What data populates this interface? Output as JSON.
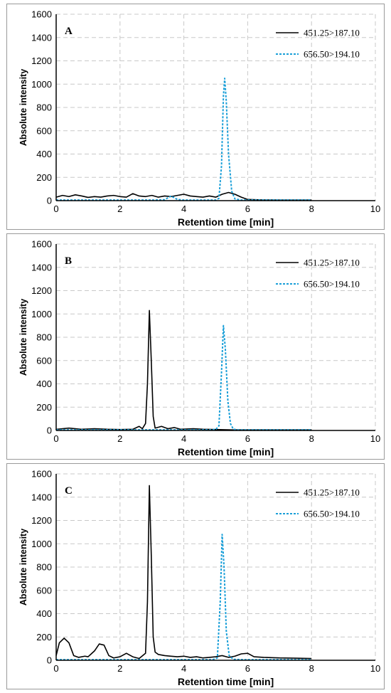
{
  "chart_data": [
    {
      "type": "line",
      "panel_label": "A",
      "xlabel": "Retention time [min]",
      "ylabel": "Absolute intensity",
      "xlim": [
        0,
        10
      ],
      "ylim": [
        0,
        1600
      ],
      "xticks": [
        0,
        2,
        4,
        6,
        8,
        10
      ],
      "yticks": [
        0,
        200,
        400,
        600,
        800,
        1000,
        1200,
        1400,
        1600
      ],
      "grid": true,
      "legend": "top-right",
      "series": [
        {
          "name": "451.25>187.10",
          "color": "#000000",
          "style": "solid",
          "points": [
            [
              0,
              30
            ],
            [
              0.2,
              45
            ],
            [
              0.4,
              35
            ],
            [
              0.6,
              50
            ],
            [
              0.8,
              40
            ],
            [
              1.0,
              28
            ],
            [
              1.2,
              35
            ],
            [
              1.4,
              30
            ],
            [
              1.6,
              40
            ],
            [
              1.8,
              45
            ],
            [
              2.0,
              35
            ],
            [
              2.2,
              30
            ],
            [
              2.4,
              60
            ],
            [
              2.6,
              40
            ],
            [
              2.8,
              35
            ],
            [
              3.0,
              45
            ],
            [
              3.2,
              30
            ],
            [
              3.4,
              40
            ],
            [
              3.6,
              35
            ],
            [
              3.8,
              45
            ],
            [
              4.0,
              55
            ],
            [
              4.2,
              40
            ],
            [
              4.4,
              35
            ],
            [
              4.6,
              30
            ],
            [
              4.8,
              40
            ],
            [
              5.0,
              30
            ],
            [
              5.2,
              55
            ],
            [
              5.4,
              70
            ],
            [
              5.6,
              55
            ],
            [
              5.8,
              30
            ],
            [
              6.0,
              10
            ],
            [
              6.5,
              6
            ],
            [
              7.0,
              5
            ],
            [
              7.5,
              5
            ],
            [
              8.0,
              5
            ]
          ]
        },
        {
          "name": "656.50>194.10",
          "color": "#1a9fd8",
          "style": "dashed",
          "points": [
            [
              0,
              5
            ],
            [
              1,
              5
            ],
            [
              2,
              5
            ],
            [
              3.0,
              5
            ],
            [
              3.4,
              8
            ],
            [
              3.6,
              40
            ],
            [
              3.8,
              10
            ],
            [
              4.0,
              5
            ],
            [
              4.6,
              5
            ],
            [
              5.0,
              5
            ],
            [
              5.1,
              20
            ],
            [
              5.18,
              300
            ],
            [
              5.24,
              900
            ],
            [
              5.28,
              1050
            ],
            [
              5.33,
              850
            ],
            [
              5.4,
              400
            ],
            [
              5.5,
              80
            ],
            [
              5.6,
              15
            ],
            [
              5.8,
              5
            ],
            [
              6.5,
              5
            ],
            [
              7.0,
              5
            ],
            [
              8.0,
              5
            ]
          ]
        }
      ]
    },
    {
      "type": "line",
      "panel_label": "B",
      "xlabel": "Retention time [min]",
      "ylabel": "Absolute intensity",
      "xlim": [
        0,
        10
      ],
      "ylim": [
        0,
        1600
      ],
      "xticks": [
        0,
        2,
        4,
        6,
        8,
        10
      ],
      "yticks": [
        0,
        200,
        400,
        600,
        800,
        1000,
        1200,
        1400,
        1600
      ],
      "grid": true,
      "legend": "top-right",
      "series": [
        {
          "name": "451.25>187.10",
          "color": "#000000",
          "style": "solid",
          "points": [
            [
              0,
              10
            ],
            [
              0.4,
              20
            ],
            [
              0.8,
              10
            ],
            [
              1.2,
              15
            ],
            [
              1.6,
              10
            ],
            [
              2.0,
              8
            ],
            [
              2.4,
              10
            ],
            [
              2.6,
              35
            ],
            [
              2.7,
              15
            ],
            [
              2.8,
              60
            ],
            [
              2.86,
              400
            ],
            [
              2.92,
              1030
            ],
            [
              2.98,
              600
            ],
            [
              3.04,
              120
            ],
            [
              3.1,
              20
            ],
            [
              3.3,
              35
            ],
            [
              3.5,
              15
            ],
            [
              3.7,
              25
            ],
            [
              3.9,
              10
            ],
            [
              4.3,
              15
            ],
            [
              4.6,
              10
            ],
            [
              5.0,
              8
            ],
            [
              5.5,
              5
            ],
            [
              6.0,
              5
            ],
            [
              7.0,
              5
            ],
            [
              8.0,
              5
            ]
          ]
        },
        {
          "name": "656.50>194.10",
          "color": "#1a9fd8",
          "style": "dashed",
          "points": [
            [
              0,
              5
            ],
            [
              1,
              5
            ],
            [
              2,
              5
            ],
            [
              3,
              5
            ],
            [
              3.6,
              5
            ],
            [
              4.0,
              5
            ],
            [
              4.8,
              5
            ],
            [
              5.0,
              8
            ],
            [
              5.1,
              40
            ],
            [
              5.18,
              500
            ],
            [
              5.24,
              900
            ],
            [
              5.3,
              700
            ],
            [
              5.38,
              250
            ],
            [
              5.46,
              60
            ],
            [
              5.55,
              10
            ],
            [
              5.7,
              5
            ],
            [
              6.5,
              5
            ],
            [
              8.0,
              5
            ]
          ]
        }
      ]
    },
    {
      "type": "line",
      "panel_label": "C",
      "xlabel": "Retention time [min]",
      "ylabel": "Absolute intensity",
      "xlim": [
        0,
        10
      ],
      "ylim": [
        0,
        1600
      ],
      "xticks": [
        0,
        2,
        4,
        6,
        8,
        10
      ],
      "yticks": [
        0,
        200,
        400,
        600,
        800,
        1000,
        1200,
        1400,
        1600
      ],
      "grid": true,
      "legend": "top-right",
      "series": [
        {
          "name": "451.25>187.10",
          "color": "#000000",
          "style": "solid",
          "points": [
            [
              0,
              40
            ],
            [
              0.1,
              150
            ],
            [
              0.25,
              190
            ],
            [
              0.4,
              150
            ],
            [
              0.55,
              40
            ],
            [
              0.7,
              25
            ],
            [
              0.9,
              35
            ],
            [
              1.0,
              30
            ],
            [
              1.2,
              80
            ],
            [
              1.35,
              140
            ],
            [
              1.5,
              130
            ],
            [
              1.65,
              40
            ],
            [
              1.8,
              20
            ],
            [
              2.0,
              30
            ],
            [
              2.2,
              60
            ],
            [
              2.4,
              30
            ],
            [
              2.6,
              15
            ],
            [
              2.8,
              60
            ],
            [
              2.86,
              500
            ],
            [
              2.92,
              1500
            ],
            [
              2.98,
              900
            ],
            [
              3.04,
              200
            ],
            [
              3.1,
              70
            ],
            [
              3.2,
              50
            ],
            [
              3.4,
              40
            ],
            [
              3.6,
              35
            ],
            [
              3.8,
              30
            ],
            [
              4.0,
              35
            ],
            [
              4.2,
              25
            ],
            [
              4.4,
              30
            ],
            [
              4.6,
              20
            ],
            [
              4.8,
              25
            ],
            [
              5.0,
              30
            ],
            [
              5.2,
              40
            ],
            [
              5.4,
              25
            ],
            [
              5.6,
              35
            ],
            [
              5.8,
              55
            ],
            [
              6.0,
              60
            ],
            [
              6.2,
              30
            ],
            [
              6.5,
              25
            ],
            [
              7.0,
              20
            ],
            [
              7.5,
              18
            ],
            [
              8.0,
              15
            ]
          ]
        },
        {
          "name": "656.50>194.10",
          "color": "#1a9fd8",
          "style": "dashed",
          "points": [
            [
              0,
              5
            ],
            [
              1,
              5
            ],
            [
              2,
              5
            ],
            [
              3,
              5
            ],
            [
              4,
              5
            ],
            [
              4.9,
              5
            ],
            [
              5.05,
              20
            ],
            [
              5.14,
              500
            ],
            [
              5.2,
              1080
            ],
            [
              5.26,
              800
            ],
            [
              5.33,
              250
            ],
            [
              5.42,
              40
            ],
            [
              5.55,
              8
            ],
            [
              6.0,
              5
            ],
            [
              7.0,
              5
            ],
            [
              8.0,
              5
            ]
          ]
        }
      ]
    }
  ]
}
